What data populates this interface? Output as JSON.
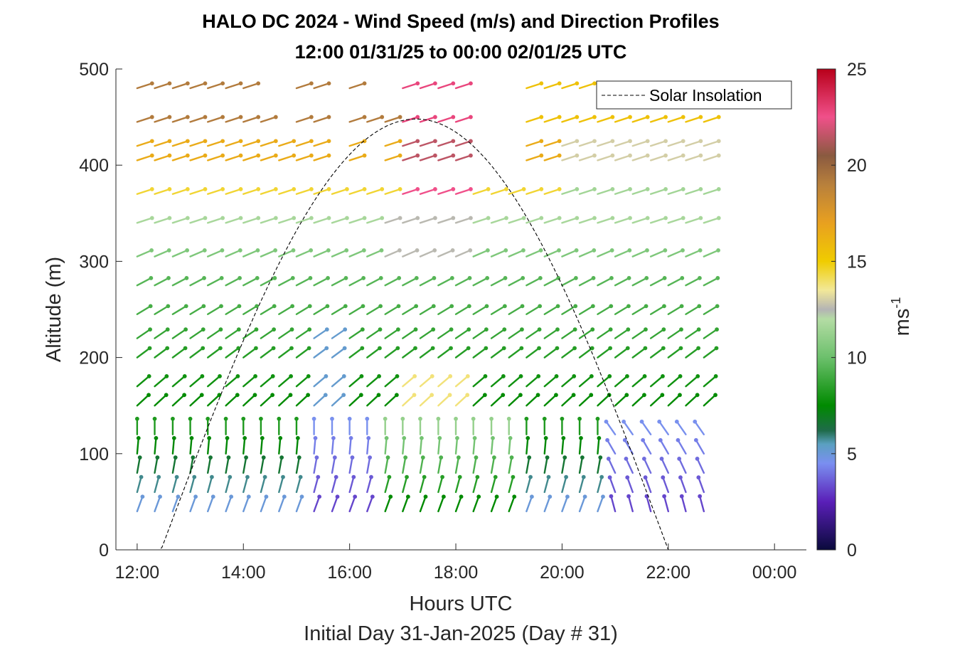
{
  "chart_data": {
    "type": "scatter",
    "plot_kind": "wind barb / arrow profile",
    "title_line1": "HALO DC 2024 - Wind Speed (m/s) and Direction Profiles",
    "title_line2": "12:00 01/31/25 to 00:00 02/01/25  UTC",
    "xlabel": "Hours UTC",
    "xlabel2": "Initial Day 31-Jan-2025 (Day # 31)",
    "ylabel": "Altitude (m)",
    "xlim": [
      11.6,
      24.6
    ],
    "ylim": [
      0,
      500
    ],
    "x_ticks": [
      12,
      14,
      16,
      18,
      20,
      22,
      24
    ],
    "x_tick_labels": [
      "12:00",
      "14:00",
      "16:00",
      "18:00",
      "20:00",
      "22:00",
      "00:00"
    ],
    "y_ticks": [
      0,
      100,
      200,
      300,
      400,
      500
    ],
    "y_tick_labels": [
      "0",
      "100",
      "200",
      "300",
      "400",
      "500"
    ],
    "colorbar": {
      "label": "ms",
      "label_exponent": "-1",
      "ticks": [
        0,
        5,
        10,
        15,
        20,
        25
      ],
      "tick_labels": [
        "0",
        "5",
        "10",
        "15",
        "20",
        "25"
      ],
      "range": [
        0,
        25
      ],
      "stops": [
        {
          "v": 0,
          "c": "#0a0a3c"
        },
        {
          "v": 2.5,
          "c": "#5a1fb8"
        },
        {
          "v": 4.5,
          "c": "#7a8ff0"
        },
        {
          "v": 5.5,
          "c": "#5aa0c0"
        },
        {
          "v": 6.2,
          "c": "#1f6b4a"
        },
        {
          "v": 7.5,
          "c": "#008a00"
        },
        {
          "v": 10,
          "c": "#6cc06c"
        },
        {
          "v": 12,
          "c": "#b4dca4"
        },
        {
          "v": 12.5,
          "c": "#b4b4b4"
        },
        {
          "v": 13.5,
          "c": "#f2e898"
        },
        {
          "v": 15,
          "c": "#f0cc00"
        },
        {
          "v": 17,
          "c": "#e8a020"
        },
        {
          "v": 19,
          "c": "#b8803c"
        },
        {
          "v": 20.5,
          "c": "#8a5a40"
        },
        {
          "v": 22.5,
          "c": "#f0508a"
        },
        {
          "v": 25,
          "c": "#b8001a"
        }
      ]
    },
    "legend": {
      "entries": [
        "Solar Insolation"
      ],
      "placement": "top-right"
    },
    "grid": false,
    "wind_profiles": {
      "times_hours": [
        12.0,
        12.33,
        12.67,
        13.0,
        13.33,
        13.67,
        14.0,
        14.33,
        14.67,
        15.0,
        15.33,
        15.67,
        16.0,
        16.33,
        16.67,
        17.0,
        17.33,
        17.67,
        18.0,
        18.33,
        18.67,
        19.0,
        19.33,
        19.67,
        20.0,
        20.33,
        20.67,
        21.0,
        21.33,
        21.67,
        22.0,
        22.33,
        22.67
      ],
      "altitudes_m": [
        40,
        60,
        80,
        100,
        120,
        150,
        170,
        200,
        220,
        245,
        275,
        305,
        340,
        370,
        405,
        420,
        445,
        480
      ],
      "speed_direction_description": "Light (2-5 m/s) purple/blue winds near surface in early and late periods, green (6-11 m/s) through mid-levels, yellow/brown (13-20 m/s) above 350 m, pink/red (21-25 m/s) aloft near 17:00-18:00"
    },
    "solar_insolation": {
      "start_hour": 12.45,
      "end_hour": 22.0,
      "peak_hour": 17.25,
      "peak_value_axis_units": 448,
      "style": "dashed black"
    }
  }
}
